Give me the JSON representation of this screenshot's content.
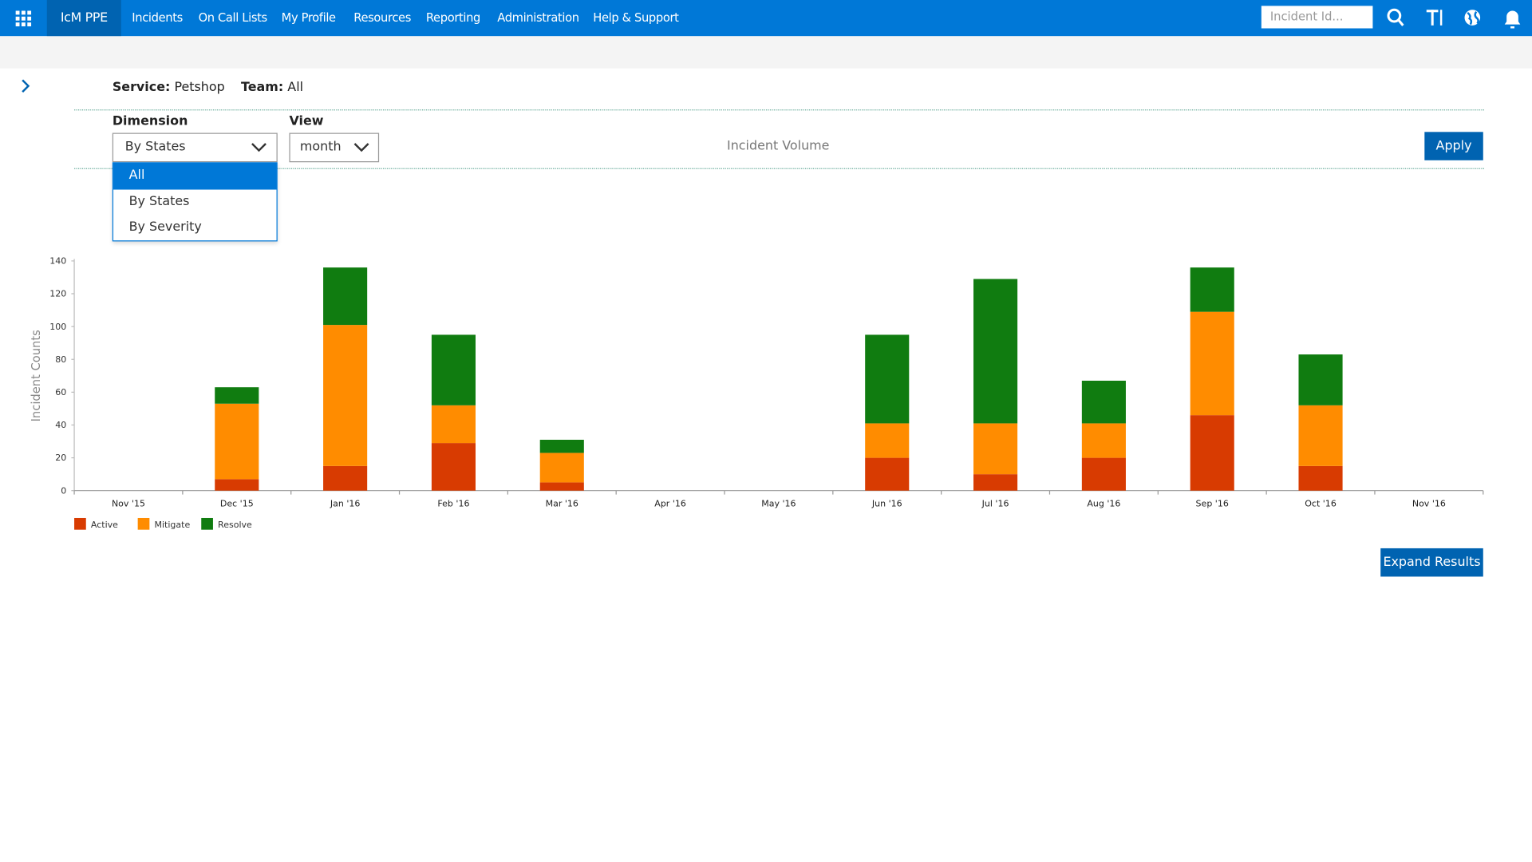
{
  "nav": {
    "brand": "IcM PPE",
    "items": [
      "Incidents",
      "On Call Lists",
      "My Profile",
      "Resources",
      "Reporting",
      "Administration",
      "Help & Support"
    ],
    "search_placeholder": "Incident Id..."
  },
  "filters": {
    "service_label": "Service:",
    "service": "Petshop",
    "team_label": "Team:",
    "team": "All",
    "dimension_label": "Dimension",
    "dimension": "By States",
    "view_label": "View",
    "view": "month",
    "apply": "Apply",
    "dimension_options": [
      "All",
      "By States",
      "By Severity"
    ]
  },
  "chart_data": {
    "type": "bar",
    "stacked": true,
    "title": "Incident Volume",
    "y_label": "Incident Counts",
    "categories": [
      "Nov '15",
      "Dec '15",
      "Jan '16",
      "Feb '16",
      "Mar '16",
      "Apr '16",
      "May '16",
      "Jun '16",
      "Jul '16",
      "Aug '16",
      "Sep '16",
      "Oct '16",
      "Nov '16"
    ],
    "series": [
      {
        "name": "Active",
        "color": "#d83b01",
        "values": [
          0,
          7,
          15,
          29,
          5,
          0,
          0,
          20,
          10,
          20,
          46,
          15,
          0
        ]
      },
      {
        "name": "Mitigate",
        "color": "#ff8c00",
        "values": [
          0,
          46,
          86,
          23,
          18,
          0,
          0,
          21,
          31,
          21,
          63,
          37,
          0
        ]
      },
      {
        "name": "Resolve",
        "color": "#107c10",
        "values": [
          0,
          10,
          35,
          43,
          8,
          0,
          0,
          54,
          88,
          26,
          27,
          31,
          0
        ]
      }
    ],
    "ylim": [
      0,
      140
    ],
    "yticks": [
      0,
      20,
      40,
      60,
      80,
      100,
      120,
      140
    ],
    "legend": "bottom-left"
  },
  "expand": "Expand Results"
}
